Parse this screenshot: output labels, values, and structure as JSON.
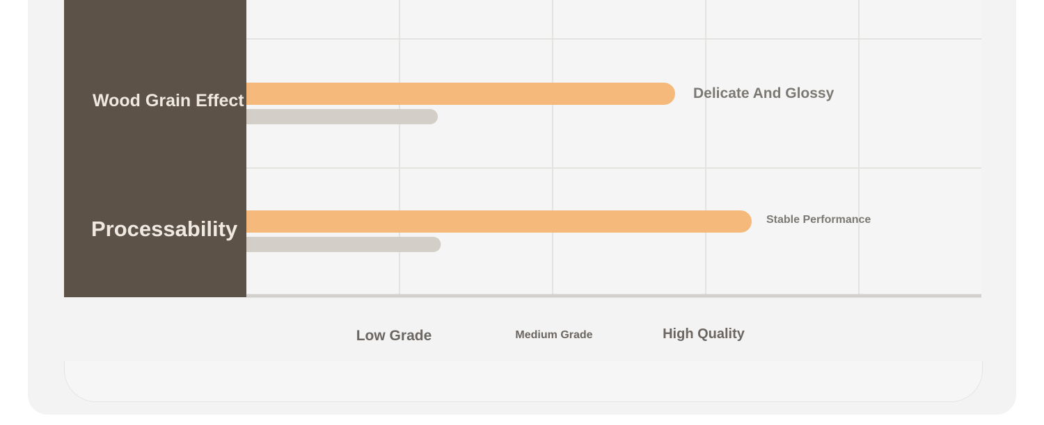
{
  "chart_data": {
    "type": "bar",
    "orientation": "horizontal",
    "categories": [
      "Wood Grain Effect",
      "Processability"
    ],
    "series": [
      {
        "values": [
          2.8,
          3.3
        ],
        "color": "#f5b97b"
      },
      {
        "values": [
          1.25,
          1.27
        ],
        "color": "#d3cfc8"
      }
    ],
    "bar_notes": [
      "Delicate And Glossy",
      "Stable Performance"
    ],
    "x_ticks": [
      {
        "value": 1,
        "label": "Low Grade"
      },
      {
        "value": 2,
        "label": "Medium Grade"
      },
      {
        "value": 3,
        "label": "High Quality"
      }
    ],
    "xlim": [
      0,
      4.8
    ],
    "grid": true
  }
}
